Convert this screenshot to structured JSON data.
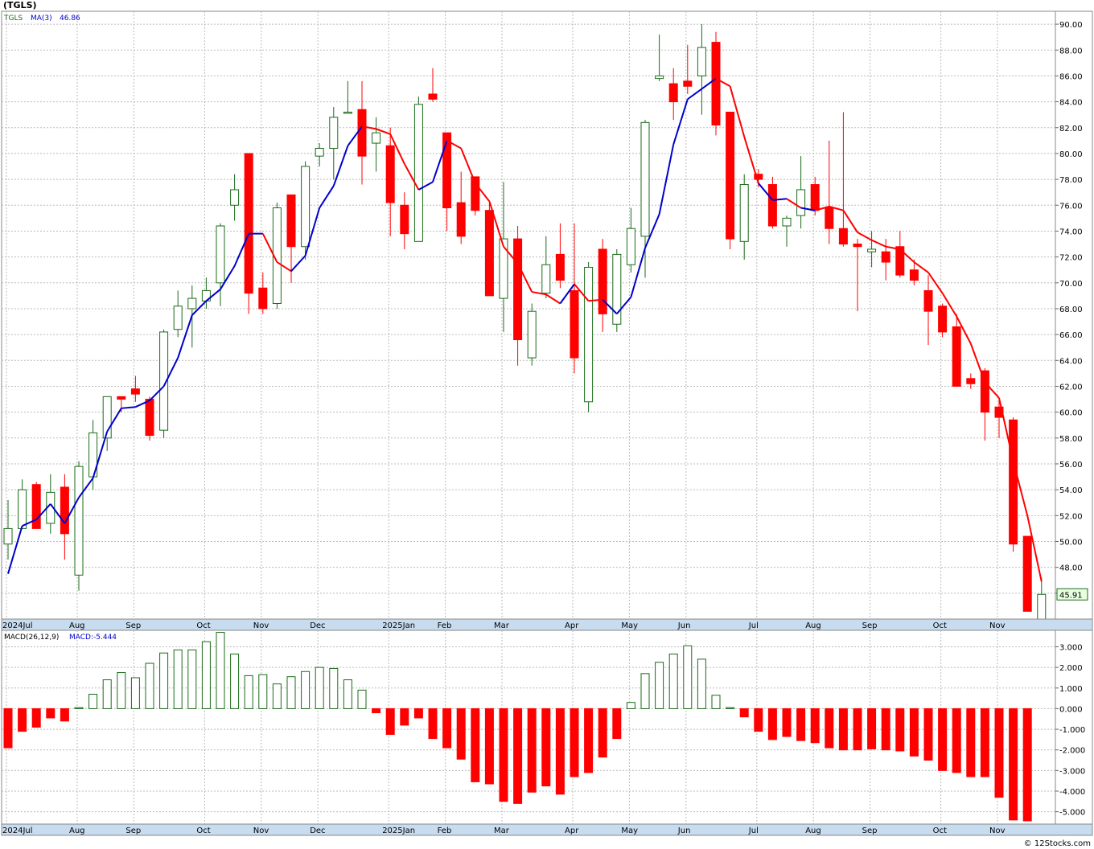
{
  "header": {
    "title": "(TGLS)",
    "copyright": "© 12Stocks.com"
  },
  "price_panel": {
    "symbol": "TGLS",
    "ma_label": "MA(3)",
    "ma_value": "46.86",
    "last_price": "45.91",
    "up_color": "#1a6b1a",
    "down_color": "#ff0000",
    "ma_up_color": "#0000cc",
    "ma_down_color": "#ff0000"
  },
  "macd_panel": {
    "label": "MACD(26,12,9)",
    "value_label": "MACD:-5.444",
    "up_color": "#1a6b1a",
    "down_color": "#ff0000"
  },
  "chart_data": [
    {
      "type": "candlestick",
      "title": "(TGLS)",
      "frequency": "weekly",
      "ylim": [
        44,
        91
      ],
      "y_ticks": [
        "46.00",
        "48.00",
        "50.00",
        "52.00",
        "54.00",
        "56.00",
        "58.00",
        "60.00",
        "62.00",
        "64.00",
        "66.00",
        "68.00",
        "70.00",
        "72.00",
        "74.00",
        "76.00",
        "78.00",
        "80.00",
        "82.00",
        "84.00",
        "86.00",
        "88.00",
        "90.00"
      ],
      "x_labels": [
        {
          "i": 0,
          "label": "2024Jul"
        },
        {
          "i": 5,
          "label": "Aug"
        },
        {
          "i": 9,
          "label": "Sep"
        },
        {
          "i": 14,
          "label": "Oct"
        },
        {
          "i": 18,
          "label": "Nov"
        },
        {
          "i": 22,
          "label": "Dec"
        },
        {
          "i": 27,
          "label": "2025Jan"
        },
        {
          "i": 31,
          "label": "Feb"
        },
        {
          "i": 35,
          "label": "Mar"
        },
        {
          "i": 40,
          "label": "Apr"
        },
        {
          "i": 44,
          "label": "May"
        },
        {
          "i": 48,
          "label": "Jun"
        },
        {
          "i": 53,
          "label": "Jul"
        },
        {
          "i": 57,
          "label": "Aug"
        },
        {
          "i": 61,
          "label": "Sep"
        },
        {
          "i": 66,
          "label": "Oct"
        },
        {
          "i": 70,
          "label": "Nov"
        }
      ],
      "ohlc": [
        {
          "o": 49.8,
          "h": 53.2,
          "l": 48.6,
          "c": 51.0
        },
        {
          "o": 51.0,
          "h": 54.8,
          "l": 51.0,
          "c": 54.0
        },
        {
          "o": 54.4,
          "h": 54.6,
          "l": 51.0,
          "c": 51.0
        },
        {
          "o": 51.4,
          "h": 55.2,
          "l": 50.6,
          "c": 53.8
        },
        {
          "o": 54.2,
          "h": 55.2,
          "l": 48.6,
          "c": 50.6
        },
        {
          "o": 47.4,
          "h": 56.2,
          "l": 46.2,
          "c": 55.8
        },
        {
          "o": 55.0,
          "h": 59.4,
          "l": 54.0,
          "c": 58.4
        },
        {
          "o": 58.0,
          "h": 61.2,
          "l": 57.0,
          "c": 61.2
        },
        {
          "o": 61.2,
          "h": 61.2,
          "l": 60.0,
          "c": 61.0
        },
        {
          "o": 61.8,
          "h": 62.8,
          "l": 60.8,
          "c": 61.4
        },
        {
          "o": 61.0,
          "h": 61.2,
          "l": 57.8,
          "c": 58.2
        },
        {
          "o": 58.6,
          "h": 66.4,
          "l": 58.0,
          "c": 66.2
        },
        {
          "o": 66.4,
          "h": 69.4,
          "l": 65.8,
          "c": 68.2
        },
        {
          "o": 68.0,
          "h": 69.8,
          "l": 65.0,
          "c": 68.8
        },
        {
          "o": 68.6,
          "h": 70.4,
          "l": 68.0,
          "c": 69.4
        },
        {
          "o": 70.0,
          "h": 74.6,
          "l": 68.2,
          "c": 74.4
        },
        {
          "o": 76.0,
          "h": 78.4,
          "l": 74.8,
          "c": 77.2
        },
        {
          "o": 80.0,
          "h": 80.0,
          "l": 67.6,
          "c": 69.2
        },
        {
          "o": 69.6,
          "h": 70.8,
          "l": 67.6,
          "c": 68.0
        },
        {
          "o": 68.4,
          "h": 76.2,
          "l": 68.0,
          "c": 75.8
        },
        {
          "o": 76.8,
          "h": 76.8,
          "l": 70.0,
          "c": 72.8
        },
        {
          "o": 72.8,
          "h": 79.4,
          "l": 71.8,
          "c": 79.0
        },
        {
          "o": 79.8,
          "h": 80.8,
          "l": 79.0,
          "c": 80.4
        },
        {
          "o": 80.4,
          "h": 83.6,
          "l": 78.0,
          "c": 82.8
        },
        {
          "o": 83.2,
          "h": 85.6,
          "l": 83.2,
          "c": 83.2
        },
        {
          "o": 83.4,
          "h": 85.6,
          "l": 77.6,
          "c": 79.8
        },
        {
          "o": 80.8,
          "h": 82.8,
          "l": 78.6,
          "c": 81.6
        },
        {
          "o": 80.6,
          "h": 82.0,
          "l": 73.6,
          "c": 76.2
        },
        {
          "o": 76.0,
          "h": 77.0,
          "l": 72.6,
          "c": 73.8
        },
        {
          "o": 73.2,
          "h": 84.4,
          "l": 73.2,
          "c": 83.8
        },
        {
          "o": 84.6,
          "h": 86.6,
          "l": 84.0,
          "c": 84.2
        },
        {
          "o": 81.6,
          "h": 81.6,
          "l": 74.0,
          "c": 75.8
        },
        {
          "o": 76.2,
          "h": 78.6,
          "l": 73.0,
          "c": 73.6
        },
        {
          "o": 78.2,
          "h": 78.2,
          "l": 75.2,
          "c": 75.6
        },
        {
          "o": 75.6,
          "h": 76.2,
          "l": 69.0,
          "c": 69.0
        },
        {
          "o": 68.8,
          "h": 77.8,
          "l": 66.2,
          "c": 73.4
        },
        {
          "o": 73.4,
          "h": 74.4,
          "l": 63.6,
          "c": 65.6
        },
        {
          "o": 64.2,
          "h": 68.4,
          "l": 63.6,
          "c": 67.8
        },
        {
          "o": 69.2,
          "h": 73.6,
          "l": 68.8,
          "c": 71.4
        },
        {
          "o": 72.2,
          "h": 74.6,
          "l": 69.6,
          "c": 70.2
        },
        {
          "o": 69.4,
          "h": 74.6,
          "l": 63.0,
          "c": 64.2
        },
        {
          "o": 60.8,
          "h": 71.6,
          "l": 60.0,
          "c": 71.2
        },
        {
          "o": 72.6,
          "h": 73.4,
          "l": 66.2,
          "c": 67.6
        },
        {
          "o": 66.8,
          "h": 72.6,
          "l": 66.2,
          "c": 72.2
        },
        {
          "o": 71.4,
          "h": 75.8,
          "l": 70.8,
          "c": 74.2
        },
        {
          "o": 73.6,
          "h": 82.6,
          "l": 70.4,
          "c": 82.4
        },
        {
          "o": 85.8,
          "h": 89.2,
          "l": 85.6,
          "c": 86.0
        },
        {
          "o": 85.4,
          "h": 86.6,
          "l": 82.6,
          "c": 84.0
        },
        {
          "o": 85.6,
          "h": 88.4,
          "l": 84.6,
          "c": 85.2
        },
        {
          "o": 86.0,
          "h": 90.0,
          "l": 83.0,
          "c": 88.2
        },
        {
          "o": 88.6,
          "h": 89.4,
          "l": 81.4,
          "c": 82.2
        },
        {
          "o": 83.2,
          "h": 83.2,
          "l": 72.6,
          "c": 73.4
        },
        {
          "o": 73.2,
          "h": 78.4,
          "l": 71.8,
          "c": 77.6
        },
        {
          "o": 78.4,
          "h": 78.8,
          "l": 77.4,
          "c": 78.0
        },
        {
          "o": 77.6,
          "h": 78.2,
          "l": 74.2,
          "c": 74.4
        },
        {
          "o": 74.4,
          "h": 75.2,
          "l": 72.8,
          "c": 75.0
        },
        {
          "o": 75.2,
          "h": 79.8,
          "l": 74.2,
          "c": 77.2
        },
        {
          "o": 77.6,
          "h": 78.2,
          "l": 75.2,
          "c": 75.6
        },
        {
          "o": 75.8,
          "h": 81.0,
          "l": 73.0,
          "c": 74.2
        },
        {
          "o": 74.2,
          "h": 83.2,
          "l": 72.8,
          "c": 73.0
        },
        {
          "o": 73.0,
          "h": 73.4,
          "l": 67.8,
          "c": 72.8
        },
        {
          "o": 72.4,
          "h": 74.0,
          "l": 71.2,
          "c": 72.6
        },
        {
          "o": 72.4,
          "h": 73.4,
          "l": 70.2,
          "c": 71.6
        },
        {
          "o": 72.8,
          "h": 74.0,
          "l": 70.4,
          "c": 70.6
        },
        {
          "o": 71.0,
          "h": 71.8,
          "l": 69.8,
          "c": 70.2
        },
        {
          "o": 69.4,
          "h": 70.6,
          "l": 65.2,
          "c": 67.8
        },
        {
          "o": 68.2,
          "h": 68.4,
          "l": 65.8,
          "c": 66.2
        },
        {
          "o": 66.6,
          "h": 67.6,
          "l": 62.0,
          "c": 62.0
        },
        {
          "o": 62.6,
          "h": 63.0,
          "l": 61.8,
          "c": 62.2
        },
        {
          "o": 63.2,
          "h": 63.4,
          "l": 57.8,
          "c": 60.0
        },
        {
          "o": 60.4,
          "h": 61.0,
          "l": 58.0,
          "c": 59.6
        },
        {
          "o": 59.4,
          "h": 59.6,
          "l": 49.2,
          "c": 49.8
        },
        {
          "o": 50.4,
          "h": 50.4,
          "l": 44.6,
          "c": 44.6
        },
        {
          "o": 44.0,
          "h": 47.2,
          "l": 42.6,
          "c": 45.91
        }
      ],
      "ma3": [
        47.5,
        51.2,
        51.7,
        52.9,
        51.4,
        53.4,
        54.9,
        58.5,
        60.3,
        60.4,
        60.9,
        62.0,
        64.2,
        67.5,
        68.6,
        69.5,
        71.3,
        73.8,
        73.8,
        71.6,
        70.9,
        72.1,
        75.8,
        77.5,
        80.6,
        82.1,
        81.9,
        81.5,
        79.2,
        77.2,
        77.8,
        81.0,
        80.4,
        77.7,
        76.3,
        72.8,
        71.5,
        69.3,
        69.1,
        68.4,
        69.9,
        68.6,
        68.7,
        67.6,
        68.9,
        72.7,
        75.3,
        80.7,
        84.2,
        85.0,
        85.8,
        85.2,
        81.3,
        77.7,
        76.4,
        76.5,
        75.8,
        75.6,
        75.9,
        75.6,
        73.9,
        73.3,
        72.8,
        72.6,
        71.6,
        70.8,
        69.2,
        67.4,
        65.3,
        62.3,
        61.1,
        56.2,
        52.0,
        46.9
      ],
      "ma3_direction": [
        "up",
        "up",
        "up",
        "up",
        "up",
        "up",
        "up",
        "up",
        "up",
        "up",
        "up",
        "up",
        "up",
        "up",
        "up",
        "up",
        "up",
        "up",
        "up",
        "down",
        "down",
        "up",
        "up",
        "up",
        "up",
        "up",
        "down",
        "down",
        "down",
        "down",
        "up",
        "up",
        "down",
        "down",
        "down",
        "down",
        "down",
        "down",
        "down",
        "down",
        "up",
        "down",
        "down",
        "up",
        "up",
        "up",
        "up",
        "up",
        "up",
        "up",
        "up",
        "down",
        "down",
        "down",
        "up",
        "up",
        "down",
        "up",
        "down",
        "down",
        "down",
        "down",
        "down",
        "down",
        "down",
        "down",
        "down",
        "down",
        "down",
        "down",
        "down",
        "down",
        "down",
        "down"
      ],
      "macd_panel": {
        "type": "histogram",
        "title": "MACD(26,12,9)",
        "ylim": [
          -5.6,
          3.8
        ],
        "y_ticks": [
          "3.000",
          "2.000",
          "1.000",
          "0.000",
          "-1.000",
          "-2.000",
          "-3.000",
          "-4.000",
          "-5.000"
        ],
        "values": [
          -1.9,
          -1.1,
          -0.9,
          -0.45,
          -0.6,
          0.05,
          0.7,
          1.4,
          1.75,
          1.5,
          2.2,
          2.7,
          2.85,
          2.85,
          3.25,
          3.7,
          2.65,
          1.6,
          1.65,
          1.2,
          1.55,
          1.8,
          2.0,
          1.95,
          1.4,
          0.9,
          -0.2,
          -1.25,
          -0.8,
          -0.45,
          -1.45,
          -1.9,
          -2.45,
          -3.55,
          -3.65,
          -4.5,
          -4.6,
          -4.05,
          -3.75,
          -4.15,
          -3.3,
          -3.1,
          -2.35,
          -1.45,
          0.3,
          1.7,
          2.25,
          2.65,
          3.05,
          2.4,
          0.65,
          0.05,
          -0.4,
          -1.1,
          -1.5,
          -1.35,
          -1.55,
          -1.65,
          -1.9,
          -2.0,
          -2.0,
          -1.95,
          -2.0,
          -2.05,
          -2.3,
          -2.5,
          -3.0,
          -3.1,
          -3.3,
          -3.3,
          -4.3,
          -5.4,
          -5.444
        ]
      }
    }
  ]
}
